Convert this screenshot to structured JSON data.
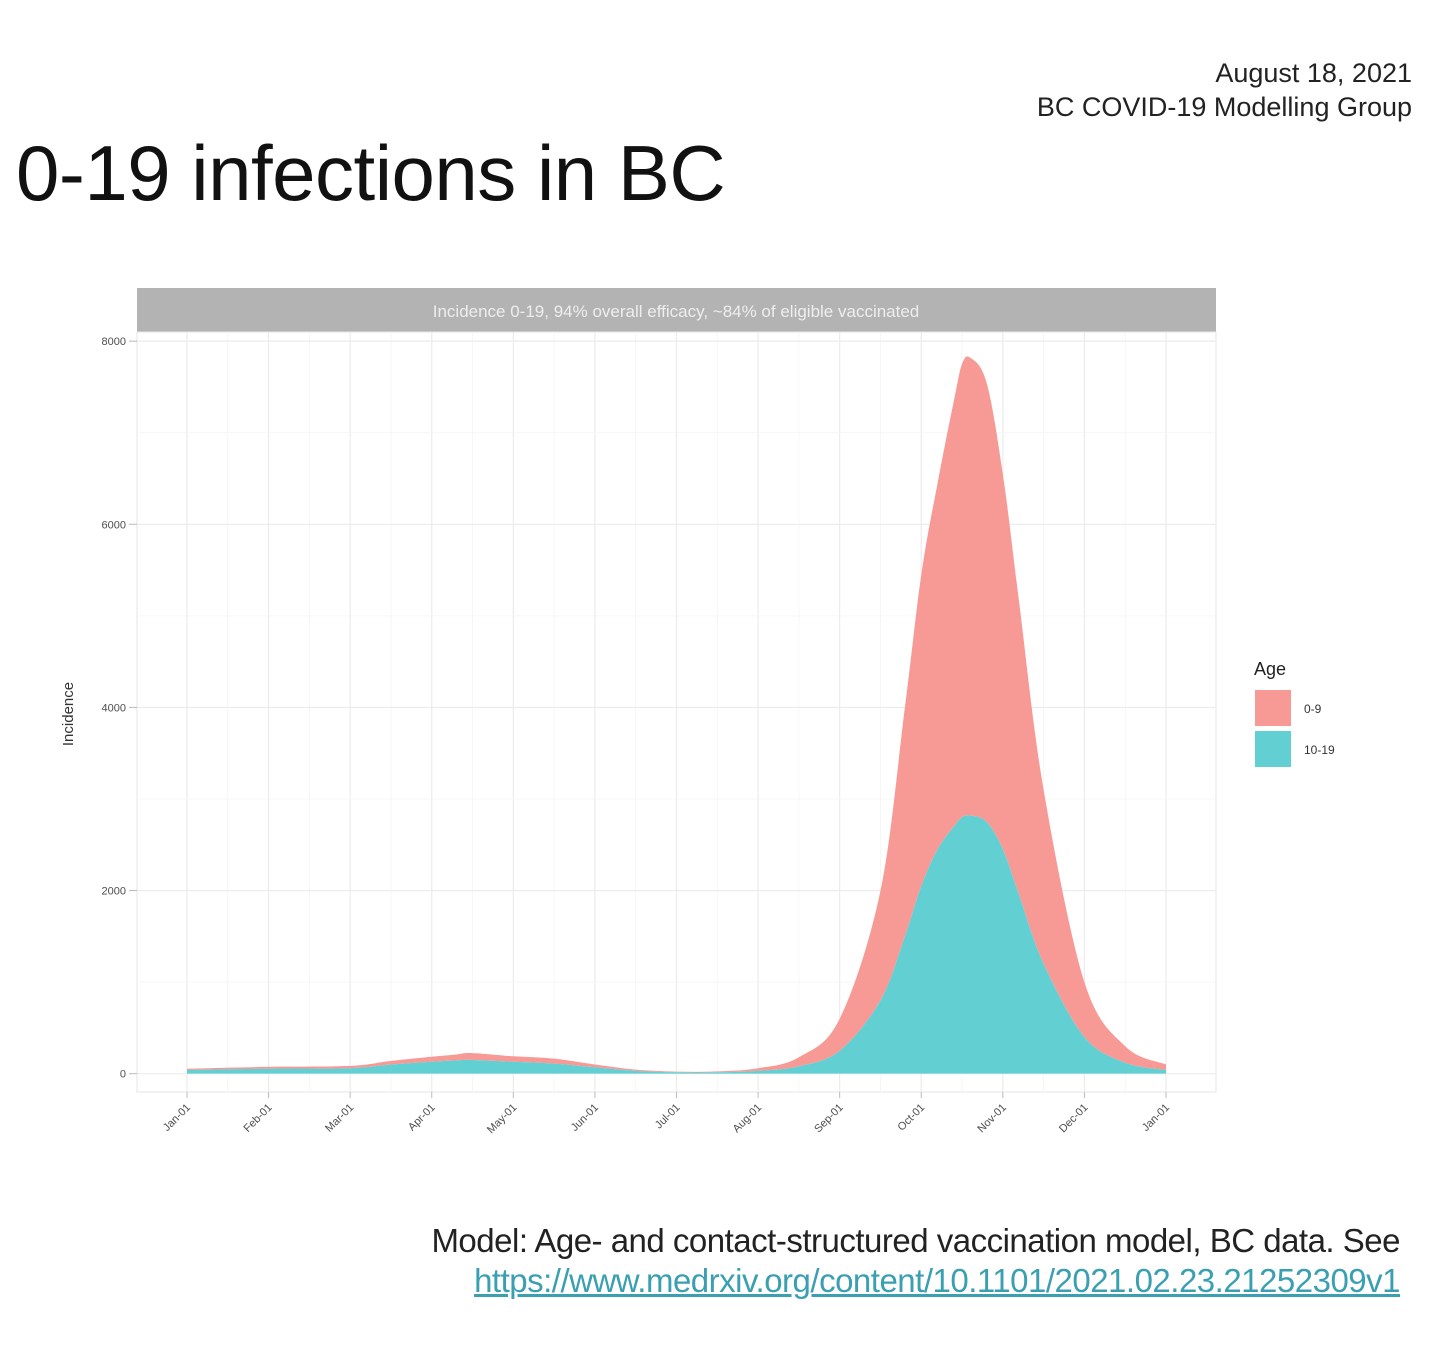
{
  "header": {
    "date": "August 18, 2021",
    "org": "BC COVID-19 Modelling Group",
    "title": "0-19 infections in BC"
  },
  "footer": {
    "note": "Model: Age- and contact-structured vaccination model, BC data. See",
    "link": "https://www.medrxiv.org/content/10.1101/2021.02.23.21252309v1"
  },
  "colors": {
    "age_0_9": "#f79a96",
    "age_10_19": "#62d0d2",
    "strip": "#b3b3b3",
    "grid": "#ebebeb"
  },
  "chart_data": {
    "type": "area",
    "stacked": true,
    "strip_title": "Incidence 0-19, 94% overall efficacy, ~84% of eligible vaccinated",
    "xlabel": "",
    "ylabel": "Incidence",
    "ylim": [
      -200,
      8100
    ],
    "yticks": [
      0,
      2000,
      4000,
      6000,
      8000
    ],
    "xticks": [
      "Jan-01",
      "Feb-01",
      "Mar-01",
      "Apr-01",
      "May-01",
      "Jun-01",
      "Jul-01",
      "Aug-01",
      "Sep-01",
      "Oct-01",
      "Nov-01",
      "Dec-01",
      "Jan-01"
    ],
    "grid": true,
    "legend": {
      "title": "Age",
      "position": "right"
    },
    "x": [
      0,
      1,
      2,
      2.5,
      3,
      3.3,
      3.5,
      4,
      4.5,
      5,
      5.5,
      6,
      6.5,
      7,
      7.5,
      8,
      8.5,
      8.8,
      9,
      9.2,
      9.4,
      9.5,
      9.6,
      9.8,
      10,
      10.2,
      10.5,
      11,
      11.5,
      12
    ],
    "series": [
      {
        "name": "0-9",
        "values": [
          15,
          20,
          25,
          40,
          55,
          65,
          75,
          60,
          55,
          30,
          15,
          8,
          10,
          30,
          100,
          350,
          1200,
          2500,
          3400,
          4000,
          4650,
          4950,
          5000,
          4800,
          4100,
          3200,
          1900,
          600,
          180,
          60
        ]
      },
      {
        "name": "10-19",
        "values": [
          40,
          55,
          60,
          100,
          130,
          145,
          150,
          130,
          110,
          70,
          30,
          15,
          15,
          30,
          80,
          250,
          800,
          1500,
          2050,
          2450,
          2700,
          2800,
          2820,
          2750,
          2450,
          1950,
          1200,
          400,
          120,
          40
        ]
      }
    ]
  }
}
